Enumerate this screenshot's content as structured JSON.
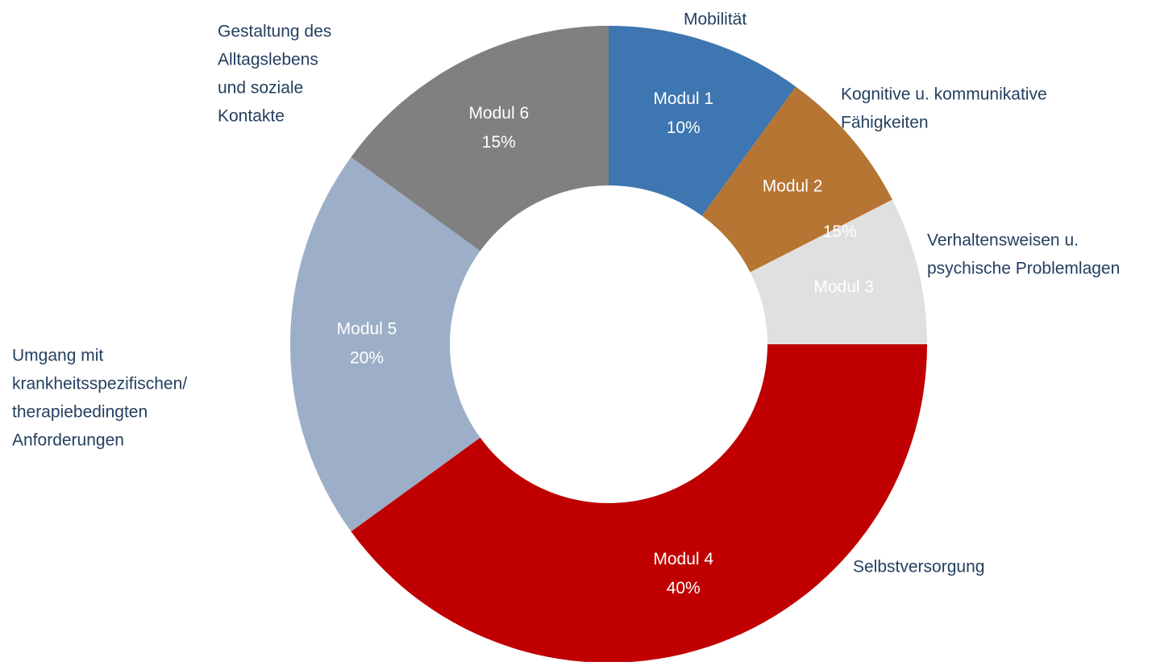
{
  "chart_data": {
    "type": "donut",
    "categories": [
      "Modul 1",
      "Modul 2",
      "Modul 3",
      "Modul 4",
      "Modul 5",
      "Modul 6"
    ],
    "values": [
      10,
      7.5,
      7.5,
      40,
      20,
      15
    ],
    "value_labels": [
      "10%",
      null,
      null,
      "40%",
      "20%",
      "15%"
    ],
    "colors": [
      "#3d76b0",
      "#b67532",
      "#e0e0e0",
      "#c00000",
      "#9dafc8",
      "#808080"
    ],
    "descriptions": [
      [
        "Mobilität"
      ],
      [
        "Kognitive u. kommunikative",
        "Fähigkeiten"
      ],
      [
        "Verhaltensweisen u.",
        "psychische Problemlagen"
      ],
      [
        "Selbstversorgung"
      ],
      [
        "Umgang mit",
        "krankheitsspezifischen/",
        "therapiebedingten",
        "Anforderungen"
      ],
      [
        "Gestaltung des",
        "Alltagslebens",
        "und soziale",
        "Kontakte"
      ]
    ],
    "annotations": [
      {
        "text": "15%"
      }
    ]
  }
}
